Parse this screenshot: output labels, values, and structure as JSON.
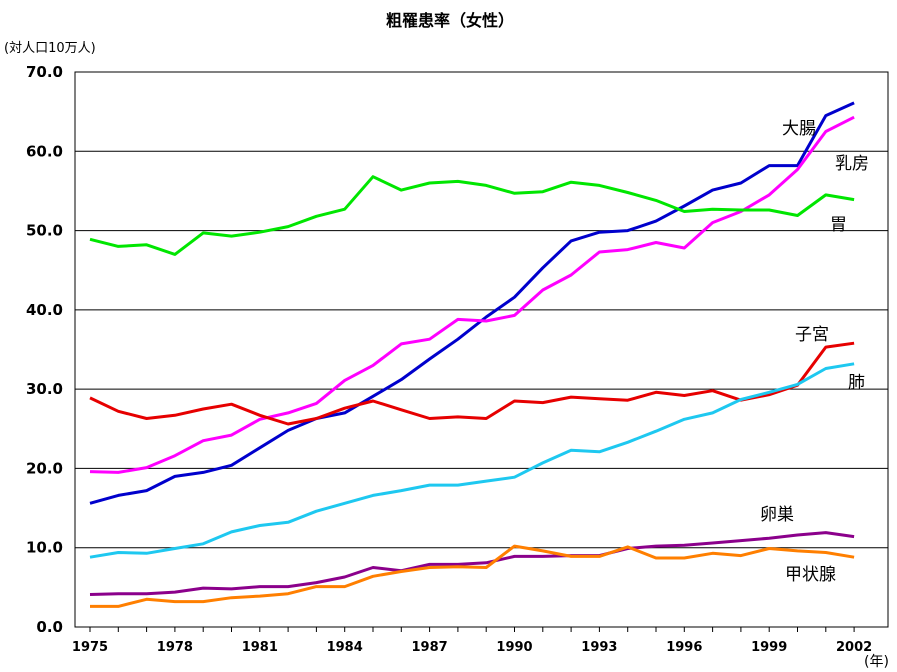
{
  "chart_data": {
    "type": "line",
    "title": "粗罹患率（女性）",
    "unit_label": "(対人口10万人)",
    "x_unit_label": "(年)",
    "ylim": [
      0,
      70
    ],
    "y_ticks": [
      "0.0",
      "10.0",
      "20.0",
      "30.0",
      "40.0",
      "50.0",
      "60.0",
      "70.0"
    ],
    "x_ticks": [
      "1975",
      "1978",
      "1981",
      "1984",
      "1987",
      "1990",
      "1993",
      "1996",
      "1999",
      "2002"
    ],
    "grid": true,
    "x": [
      1975,
      1976,
      1977,
      1978,
      1979,
      1980,
      1981,
      1982,
      1983,
      1984,
      1985,
      1986,
      1987,
      1988,
      1989,
      1990,
      1991,
      1992,
      1993,
      1994,
      1995,
      1996,
      1997,
      1998,
      1999,
      2000,
      2001,
      2002
    ],
    "series": [
      {
        "name": "大腸",
        "color": "#0000cc",
        "values": [
          15.6,
          16.6,
          17.2,
          19.0,
          19.5,
          20.4,
          22.6,
          24.8,
          26.3,
          27.0,
          29.1,
          31.2,
          33.8,
          36.3,
          39.1,
          41.6,
          45.3,
          48.7,
          49.8,
          50.0,
          51.2,
          53.1,
          55.1,
          56.0,
          58.2,
          58.2,
          64.5,
          66.1
        ]
      },
      {
        "name": "乳房",
        "color": "#ff00ff",
        "values": [
          19.6,
          19.5,
          20.1,
          21.6,
          23.5,
          24.2,
          26.2,
          27.0,
          28.2,
          31.1,
          33.0,
          35.7,
          36.3,
          38.8,
          38.6,
          39.3,
          42.5,
          44.4,
          47.3,
          47.6,
          48.5,
          47.8,
          51.0,
          52.4,
          54.5,
          57.7,
          62.5,
          64.3
        ]
      },
      {
        "name": "胃",
        "color": "#00e600",
        "values": [
          48.9,
          48.0,
          48.2,
          47.0,
          49.7,
          49.3,
          49.8,
          50.5,
          51.8,
          52.7,
          56.8,
          55.1,
          56.0,
          56.2,
          55.7,
          54.7,
          54.9,
          56.1,
          55.7,
          54.8,
          53.8,
          52.4,
          52.7,
          52.6,
          52.6,
          51.9,
          54.5,
          53.9
        ]
      },
      {
        "name": "子宮",
        "color": "#e60000",
        "values": [
          28.9,
          27.2,
          26.3,
          26.7,
          27.5,
          28.1,
          26.7,
          25.6,
          26.3,
          27.6,
          28.5,
          27.4,
          26.3,
          26.5,
          26.3,
          28.5,
          28.3,
          29.0,
          28.8,
          28.6,
          29.6,
          29.2,
          29.8,
          28.6,
          29.3,
          30.5,
          35.3,
          35.8
        ]
      },
      {
        "name": "肺",
        "color": "#1ec8f0",
        "values": [
          8.8,
          9.4,
          9.3,
          9.9,
          10.5,
          12.0,
          12.8,
          13.2,
          14.6,
          15.6,
          16.6,
          17.2,
          17.9,
          17.9,
          18.4,
          18.9,
          20.7,
          22.3,
          22.1,
          23.3,
          24.7,
          26.2,
          27.0,
          28.7,
          29.6,
          30.6,
          32.6,
          33.2
        ]
      },
      {
        "name": "卵巣",
        "color": "#8b008b",
        "values": [
          4.1,
          4.2,
          4.2,
          4.4,
          4.9,
          4.8,
          5.1,
          5.1,
          5.6,
          6.3,
          7.5,
          7.1,
          7.9,
          7.9,
          8.1,
          8.9,
          8.9,
          9.0,
          9.0,
          9.9,
          10.2,
          10.3,
          10.6,
          10.9,
          11.2,
          11.6,
          11.9,
          11.4
        ]
      },
      {
        "name": "甲状腺",
        "color": "#ff7f00",
        "values": [
          2.6,
          2.6,
          3.5,
          3.2,
          3.2,
          3.7,
          3.9,
          4.2,
          5.1,
          5.1,
          6.4,
          7.0,
          7.5,
          7.6,
          7.5,
          10.2,
          9.6,
          8.9,
          8.9,
          10.1,
          8.7,
          8.7,
          9.3,
          9.0,
          9.9,
          9.6,
          9.4,
          8.8
        ]
      }
    ]
  }
}
